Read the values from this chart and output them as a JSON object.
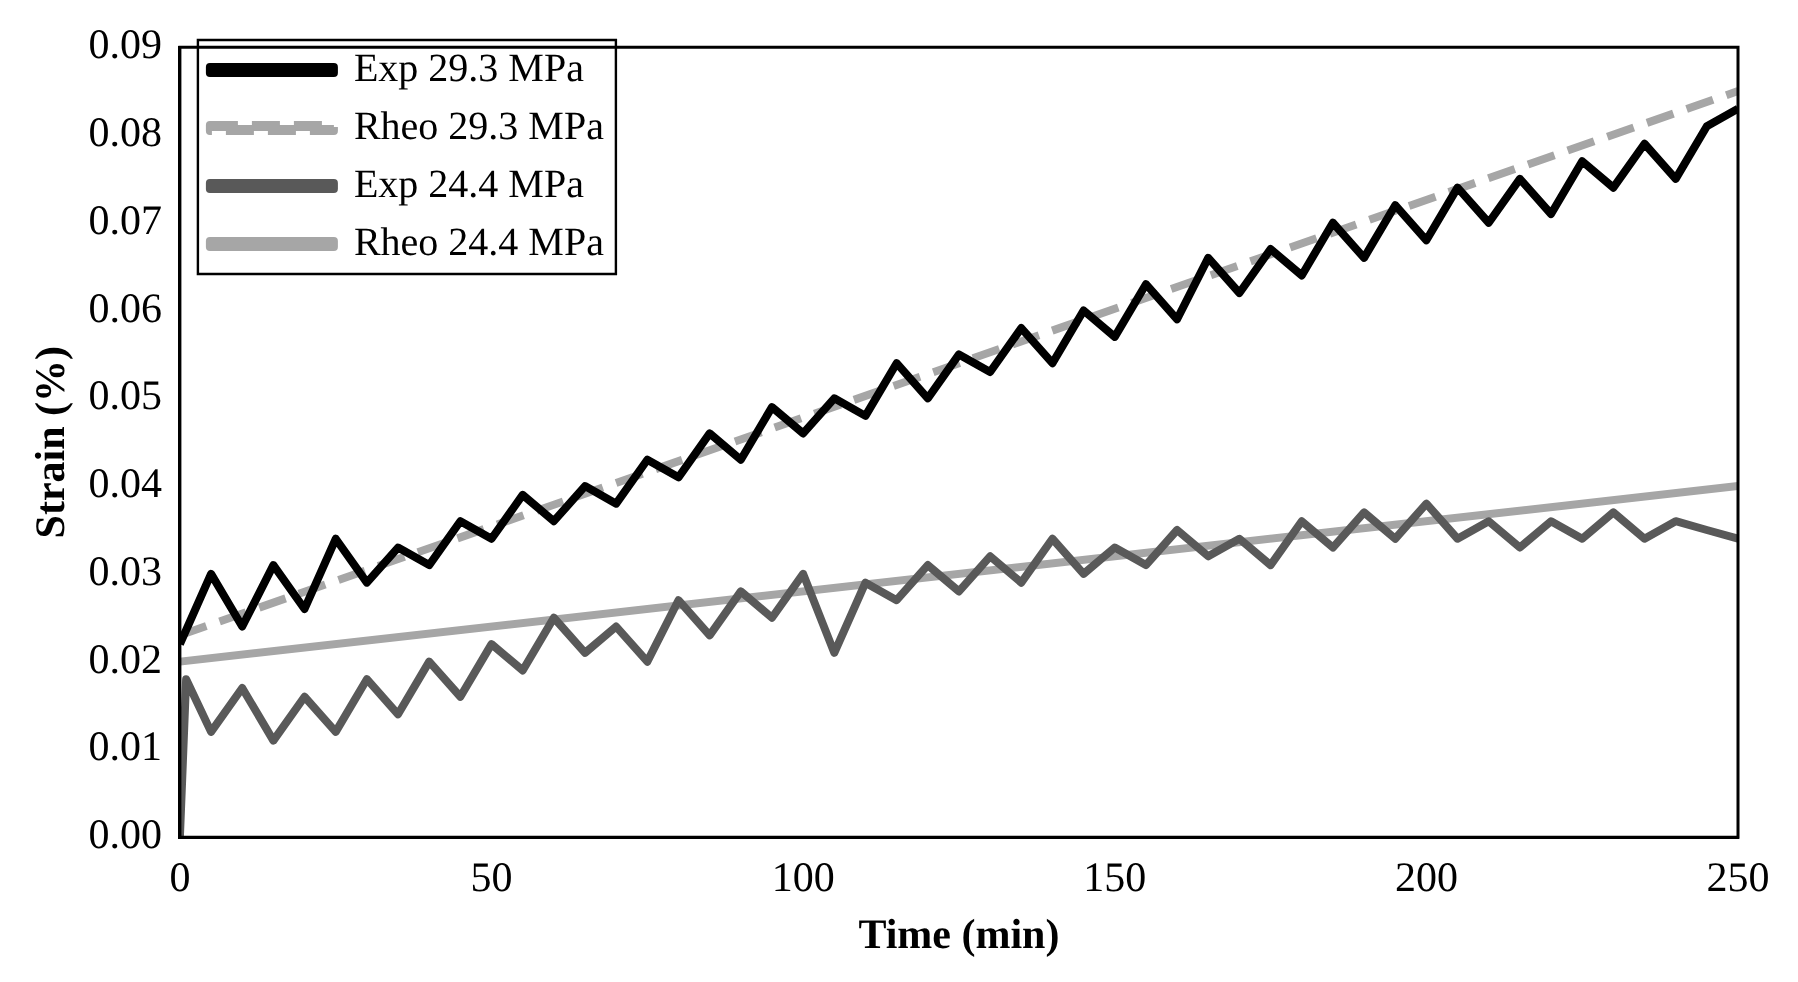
{
  "chart_data": {
    "type": "line",
    "xlabel": "Time (min)",
    "ylabel": "Strain (%)",
    "xlim": [
      0,
      250
    ],
    "ylim": [
      0,
      0.09
    ],
    "xticks": [
      0,
      50,
      100,
      150,
      200,
      250
    ],
    "yticks": [
      {
        "value": 0,
        "label": "0.00"
      },
      {
        "value": 0.01,
        "label": "0.01"
      },
      {
        "value": 0.02,
        "label": "0.02"
      },
      {
        "value": 0.03,
        "label": "0.03"
      },
      {
        "value": 0.04,
        "label": "0.04"
      },
      {
        "value": 0.05,
        "label": "0.05"
      },
      {
        "value": 0.06,
        "label": "0.06"
      },
      {
        "value": 0.07,
        "label": "0.07"
      },
      {
        "value": 0.08,
        "label": "0.08"
      },
      {
        "value": 0.09,
        "label": "0.09"
      }
    ],
    "grid": false,
    "legend": "top left",
    "marker": "none",
    "series": [
      {
        "name": "Exp 29.3 MPa",
        "color": "#000000",
        "line_style": "solid",
        "x": [
          0,
          5,
          10,
          15,
          20,
          25,
          30,
          35,
          40,
          45,
          50,
          55,
          60,
          65,
          70,
          75,
          80,
          85,
          90,
          95,
          100,
          105,
          110,
          115,
          120,
          125,
          130,
          135,
          140,
          145,
          150,
          155,
          160,
          165,
          170,
          175,
          180,
          185,
          190,
          195,
          200,
          205,
          210,
          215,
          220,
          225,
          230,
          235,
          240,
          245,
          250
        ],
        "values": [
          0.022,
          0.03,
          0.024,
          0.031,
          0.026,
          0.034,
          0.029,
          0.033,
          0.031,
          0.036,
          0.034,
          0.039,
          0.036,
          0.04,
          0.038,
          0.043,
          0.041,
          0.046,
          0.043,
          0.049,
          0.046,
          0.05,
          0.048,
          0.054,
          0.05,
          0.055,
          0.053,
          0.058,
          0.054,
          0.06,
          0.057,
          0.063,
          0.059,
          0.066,
          0.062,
          0.067,
          0.064,
          0.07,
          0.066,
          0.072,
          0.068,
          0.074,
          0.07,
          0.075,
          0.071,
          0.077,
          0.074,
          0.079,
          0.075,
          0.081,
          0.083
        ]
      },
      {
        "name": "Rheo 29.3 MPa",
        "color": "#a6a6a6",
        "line_style": "dashed",
        "x": [
          0,
          250
        ],
        "values": [
          0.023,
          0.085
        ]
      },
      {
        "name": "Exp 24.4 MPa",
        "color": "#595959",
        "line_style": "solid",
        "x": [
          0,
          1,
          5,
          10,
          15,
          20,
          25,
          30,
          35,
          40,
          45,
          50,
          55,
          60,
          65,
          70,
          75,
          80,
          85,
          90,
          95,
          100,
          105,
          110,
          115,
          120,
          125,
          130,
          135,
          140,
          145,
          150,
          155,
          160,
          165,
          170,
          175,
          180,
          185,
          190,
          195,
          200,
          205,
          210,
          215,
          220,
          225,
          230,
          235,
          240,
          245,
          250
        ],
        "values": [
          0,
          0.018,
          0.012,
          0.017,
          0.011,
          0.016,
          0.012,
          0.018,
          0.014,
          0.02,
          0.016,
          0.022,
          0.019,
          0.025,
          0.021,
          0.024,
          0.02,
          0.027,
          0.023,
          0.028,
          0.025,
          0.03,
          0.021,
          0.029,
          0.027,
          0.031,
          0.028,
          0.032,
          0.029,
          0.034,
          0.03,
          0.033,
          0.031,
          0.035,
          0.032,
          0.034,
          0.031,
          0.036,
          0.033,
          0.037,
          0.034,
          0.038,
          0.034,
          0.036,
          0.033,
          0.036,
          0.034,
          0.037,
          0.034,
          0.036,
          0.035,
          0.034
        ]
      },
      {
        "name": "Rheo 24.4 MPa",
        "color": "#a6a6a6",
        "line_style": "solid",
        "x": [
          0,
          250
        ],
        "values": [
          0.02,
          0.04
        ]
      }
    ]
  }
}
